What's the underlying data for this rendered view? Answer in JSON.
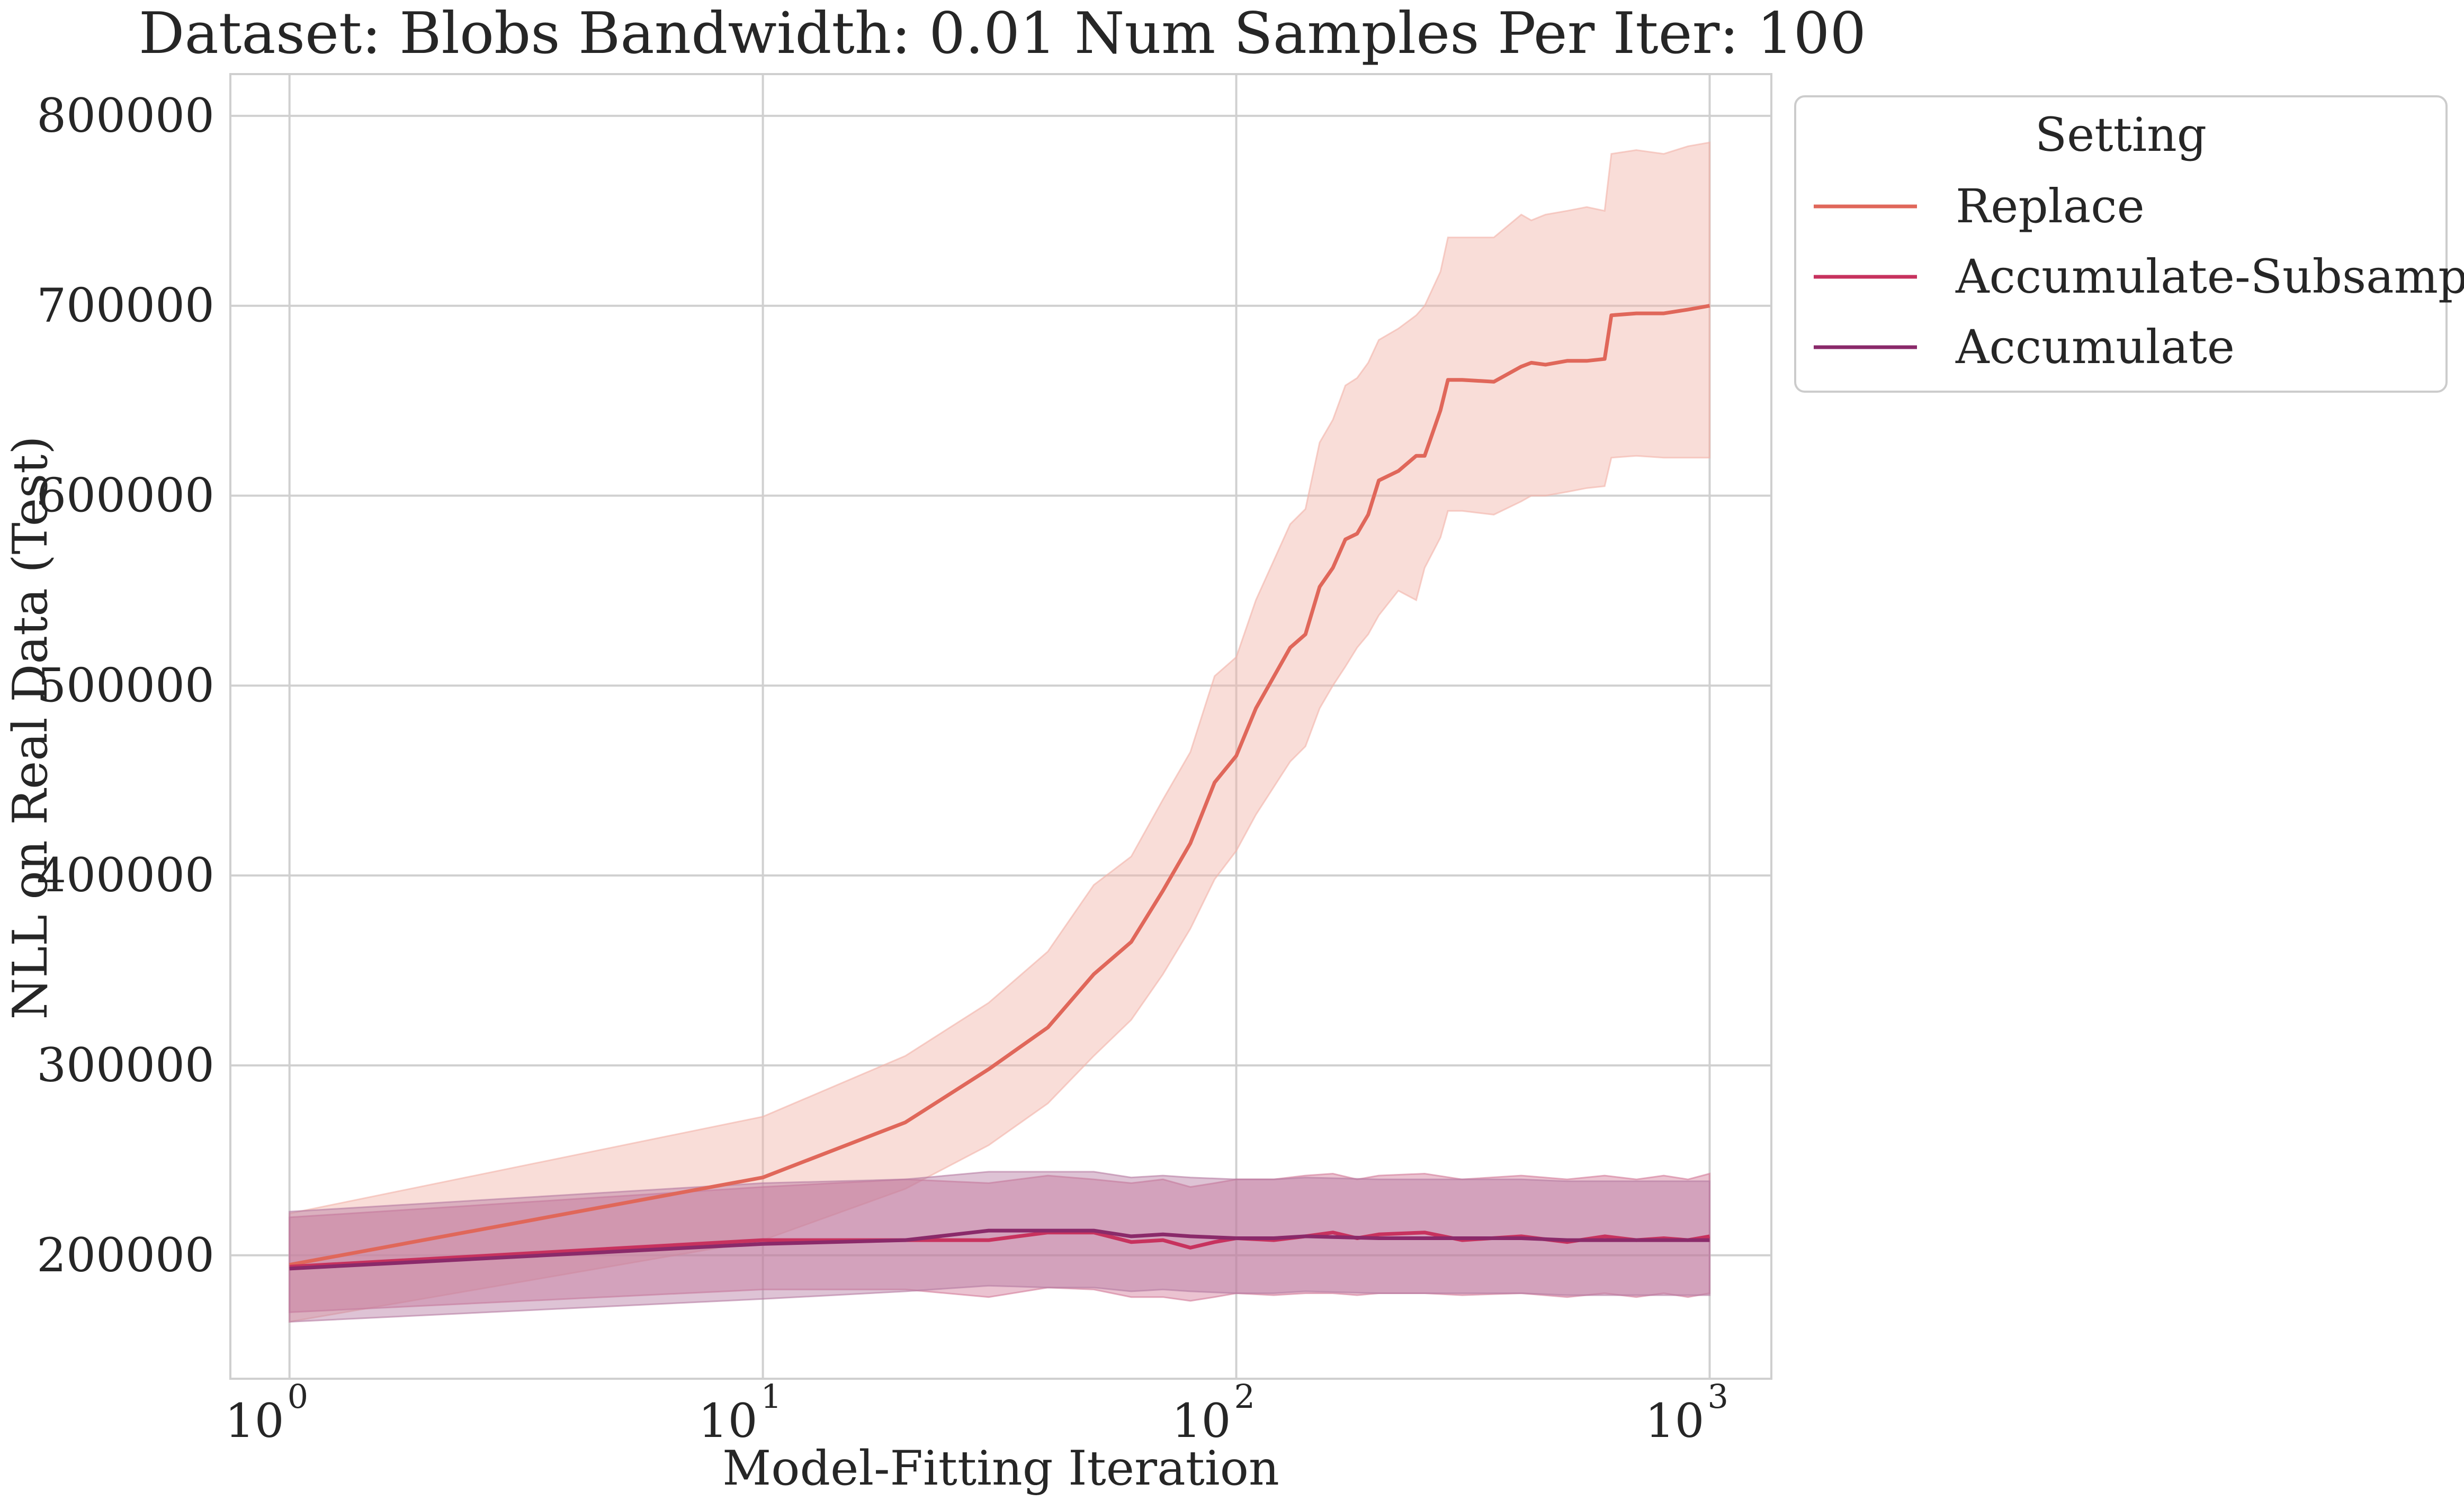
{
  "chart_data": {
    "type": "line",
    "title": "Dataset: Blobs Bandwidth: 0.01 Num Samples Per Iter: 100",
    "xlabel": "Model-Fitting Iteration",
    "ylabel": "NLL on Real Data (Test)",
    "x_scale": "log",
    "xlim": [
      0.75,
      1350
    ],
    "ylim": [
      135000,
      822000
    ],
    "x_ticks": [
      {
        "value": 1,
        "base": "10",
        "exp": "0"
      },
      {
        "value": 10,
        "base": "10",
        "exp": "1"
      },
      {
        "value": 100,
        "base": "10",
        "exp": "2"
      },
      {
        "value": 1000,
        "base": "10",
        "exp": "3"
      }
    ],
    "y_ticks": [
      200000,
      300000,
      400000,
      500000,
      600000,
      700000,
      800000
    ],
    "y_tick_labels": [
      "200000",
      "300000",
      "400000",
      "500000",
      "600000",
      "700000",
      "800000"
    ],
    "grid": true,
    "legend": {
      "title": "Setting",
      "position": "outside-top-right"
    },
    "series": [
      {
        "name": "Replace",
        "color": "#e0675a",
        "band_color": "#f2b3a8",
        "x": [
          1,
          10,
          20,
          30,
          40,
          50,
          60,
          70,
          80,
          90,
          100,
          110,
          130,
          140,
          150,
          160,
          170,
          180,
          190,
          200,
          220,
          240,
          250,
          270,
          280,
          300,
          350,
          400,
          420,
          450,
          500,
          550,
          600,
          620,
          700,
          800,
          900,
          1000
        ],
        "y": [
          195000,
          241000,
          270000,
          298000,
          320000,
          348000,
          365000,
          392000,
          417000,
          449000,
          463000,
          488000,
          520000,
          527000,
          552000,
          562000,
          577000,
          580000,
          590000,
          608000,
          613000,
          621000,
          621000,
          645000,
          661000,
          661000,
          660000,
          668000,
          670000,
          669000,
          671000,
          671000,
          672000,
          695000,
          696000,
          696000,
          698000,
          700000
        ],
        "lower": [
          165000,
          208000,
          235000,
          258000,
          280000,
          305000,
          324000,
          348000,
          372000,
          398000,
          413000,
          432000,
          460000,
          468000,
          488000,
          500000,
          510000,
          520000,
          527000,
          537000,
          550000,
          545000,
          562000,
          578000,
          592000,
          592000,
          590000,
          597000,
          600000,
          600000,
          602000,
          604000,
          605000,
          620000,
          621000,
          620000,
          620000,
          620000
        ],
        "upper": [
          222000,
          273000,
          305000,
          333000,
          360000,
          395000,
          410000,
          440000,
          465000,
          505000,
          515000,
          545000,
          585000,
          593000,
          628000,
          640000,
          658000,
          662000,
          670000,
          682000,
          688000,
          695000,
          700000,
          718000,
          736000,
          736000,
          736000,
          748000,
          745000,
          748000,
          750000,
          752000,
          750000,
          780000,
          782000,
          780000,
          784000,
          786000
        ]
      },
      {
        "name": "Accumulate-Subsample",
        "color": "#c7325e",
        "band_color": "#d27a98",
        "x": [
          1,
          10,
          20,
          30,
          40,
          50,
          60,
          70,
          80,
          90,
          100,
          120,
          140,
          160,
          180,
          200,
          250,
          300,
          400,
          500,
          600,
          700,
          800,
          900,
          1000
        ],
        "y": [
          194000,
          208000,
          208000,
          208000,
          212000,
          212000,
          207000,
          208000,
          204000,
          207000,
          209000,
          208000,
          210000,
          212000,
          209000,
          211000,
          212000,
          208000,
          210000,
          207000,
          210000,
          208000,
          209000,
          208000,
          210000
        ],
        "lower": [
          170000,
          182000,
          182000,
          178000,
          183000,
          182000,
          178000,
          178000,
          176000,
          178000,
          180000,
          179000,
          180000,
          180000,
          179000,
          180000,
          180000,
          179000,
          180000,
          178000,
          180000,
          178000,
          180000,
          178000,
          180000
        ],
        "upper": [
          220000,
          236000,
          240000,
          238000,
          242000,
          240000,
          238000,
          240000,
          236000,
          238000,
          240000,
          240000,
          242000,
          243000,
          240000,
          242000,
          243000,
          240000,
          242000,
          240000,
          242000,
          240000,
          242000,
          240000,
          243000
        ]
      },
      {
        "name": "Accumulate",
        "color": "#8a2a6a",
        "band_color": "#b57ba2",
        "x": [
          1,
          10,
          20,
          30,
          40,
          50,
          60,
          70,
          80,
          100,
          120,
          140,
          200,
          300,
          400,
          500,
          600,
          700,
          800,
          900,
          1000
        ],
        "y": [
          193000,
          206000,
          208000,
          213000,
          213000,
          213000,
          210000,
          211000,
          210000,
          209000,
          209000,
          210000,
          209000,
          209000,
          209000,
          208000,
          208000,
          208000,
          208000,
          208000,
          208000
        ],
        "lower": [
          165000,
          177000,
          181000,
          184000,
          183000,
          183000,
          181000,
          182000,
          181000,
          180000,
          180000,
          181000,
          180000,
          180000,
          180000,
          179000,
          179000,
          179000,
          179000,
          179000,
          179000
        ],
        "upper": [
          223000,
          238000,
          240000,
          244000,
          244000,
          244000,
          241000,
          242000,
          241000,
          240000,
          240000,
          241000,
          240000,
          240000,
          240000,
          239000,
          239000,
          239000,
          239000,
          239000,
          239000
        ]
      }
    ]
  }
}
